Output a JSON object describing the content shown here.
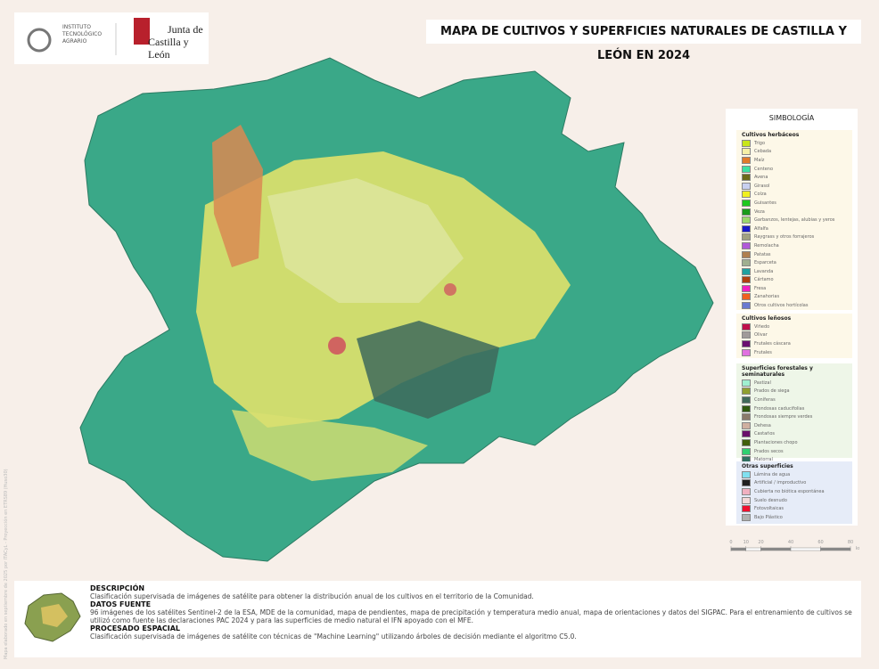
{
  "header": {
    "institute": "INSTITUTO TECNOLÓGICO AGRARIO",
    "junta": "Junta de",
    "region": "Castilla y León",
    "title": "MAPA DE CULTIVOS Y SUPERFICIES NATURALES DE CASTILLA Y LEÓN EN 2024"
  },
  "legend": {
    "title": "SIMBOLOGÍA",
    "sections": [
      {
        "title": "Cultivos herbáceos",
        "background": "#fdf8e8",
        "items": [
          {
            "label": "Trigo",
            "color": "#c8e619"
          },
          {
            "label": "Cebada",
            "color": "#f5f0a6"
          },
          {
            "label": "Maíz",
            "color": "#e07a2a"
          },
          {
            "label": "Centeno",
            "color": "#3de0a0"
          },
          {
            "label": "Avena",
            "color": "#6b6b1a"
          },
          {
            "label": "Girasol",
            "color": "#c8d0f0"
          },
          {
            "label": "Colza",
            "color": "#f0f020"
          },
          {
            "label": "Guisantes",
            "color": "#1ec81e"
          },
          {
            "label": "Veza",
            "color": "#1a9a1a"
          },
          {
            "label": "Garbanzos, lentejas, alubias y yeros",
            "color": "#9ad86a"
          },
          {
            "label": "Alfalfa",
            "color": "#1a1ac8"
          },
          {
            "label": "Raygrass y otros forrajeros",
            "color": "#a0a080"
          },
          {
            "label": "Remolacha",
            "color": "#b05ad8"
          },
          {
            "label": "Patatas",
            "color": "#b08050"
          },
          {
            "label": "Esparceta",
            "color": "#a0b090"
          },
          {
            "label": "Lavanda",
            "color": "#20a0a0"
          },
          {
            "label": "Cártamo",
            "color": "#b04010"
          },
          {
            "label": "Fresa",
            "color": "#f020c0"
          },
          {
            "label": "Zanahorias",
            "color": "#f06020"
          },
          {
            "label": "Otros cultivos hortícolas",
            "color": "#6a7ad0"
          }
        ]
      },
      {
        "title": "Cultivos leñosos",
        "background": "#fdf8e8",
        "items": [
          {
            "label": "Viñedo",
            "color": "#c0104a"
          },
          {
            "label": "Olivar",
            "color": "#a09a9a"
          },
          {
            "label": "Frutales cáscara",
            "color": "#6a1070"
          },
          {
            "label": "Frutales",
            "color": "#e070e0"
          }
        ]
      },
      {
        "title": "Superficies forestales y seminaturales",
        "background": "#eef6e8",
        "items": [
          {
            "label": "Pastizal",
            "color": "#a0f0d0"
          },
          {
            "label": "Prados de siega",
            "color": "#90a030"
          },
          {
            "label": "Coníferas",
            "color": "#406a5a"
          },
          {
            "label": "Frondosas caducifolias",
            "color": "#305a10"
          },
          {
            "label": "Frondosas siempre verdes",
            "color": "#8a7a6a"
          },
          {
            "label": "Dehesa",
            "color": "#d0b0a0"
          },
          {
            "label": "Castaños",
            "color": "#6a106a"
          },
          {
            "label": "Plantaciones chopo",
            "color": "#40600a"
          },
          {
            "label": "Prados secos",
            "color": "#30d070"
          },
          {
            "label": "Matorral",
            "color": "#307060"
          }
        ]
      },
      {
        "title": "Otras superficies",
        "background": "#e6ecf8",
        "items": [
          {
            "label": "Lámina de agua",
            "color": "#80e0f0"
          },
          {
            "label": "Artificial / improductivo",
            "color": "#202020"
          },
          {
            "label": "Cubierta no biótica espontánea",
            "color": "#f0b0c0"
          },
          {
            "label": "Suelo desnudo",
            "color": "#f4d8d8"
          },
          {
            "label": "Fotovoltaicas",
            "color": "#f01030"
          },
          {
            "label": "Bajo Plástico",
            "color": "#b0b0b0"
          }
        ]
      }
    ]
  },
  "scale": {
    "ticks": [
      0,
      10,
      20,
      40,
      60,
      80
    ],
    "unit": "km"
  },
  "side_note": "Mapa elaborado en septiembre de 2025 por ITACyL - Proyección en ETRS89 (Huso30)",
  "footer": [
    {
      "heading": "DESCRIPCIÓN",
      "text": "Clasificación supervisada de imágenes de satélite para obtener la distribución anual de los cultivos en el territorio de la Comunidad."
    },
    {
      "heading": "DATOS FUENTE",
      "text": "96 imágenes de los satélites Sentinel-2 de la ESA, MDE de la comunidad, mapa de pendientes, mapa de precipitación y temperatura medio anual, mapa de orientaciones y datos del SIGPAC.  Para el entrenamiento de cultivos se utilizó como fuente las declaraciones PAC 2024 y para las superficies de medio natural el IFN apoyado con el MFE."
    },
    {
      "heading": "PROCESADO ESPACIAL",
      "text": "Clasificación supervisada de imágenes de satélite con técnicas de \"Machine Learning\" utilizando árboles de decisión mediante el algoritmo C5.0."
    }
  ]
}
